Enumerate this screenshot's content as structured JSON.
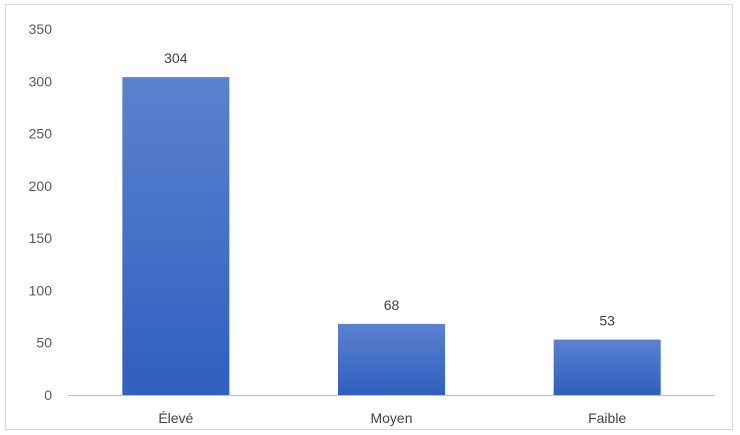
{
  "chart_data": {
    "type": "bar",
    "categories": [
      "Élevé",
      "Moyen",
      "Faible"
    ],
    "values": [
      304,
      68,
      53
    ],
    "data_labels": [
      "304",
      "68",
      "53"
    ],
    "title": "",
    "xlabel": "",
    "ylabel": "",
    "ylim": [
      0,
      350
    ],
    "yticks": [
      0,
      50,
      100,
      150,
      200,
      250,
      300,
      350
    ],
    "ytick_labels": [
      "0",
      "50",
      "100",
      "150",
      "200",
      "250",
      "300",
      "350"
    ],
    "grid": false,
    "legend": "none",
    "colors": {
      "bar_top": "#5b82cf",
      "bar_bottom": "#2f5fc0",
      "axis": "#bfbfbf",
      "tick_text": "#595959",
      "label_text": "#404040",
      "frame": "#d9d9d9"
    }
  }
}
